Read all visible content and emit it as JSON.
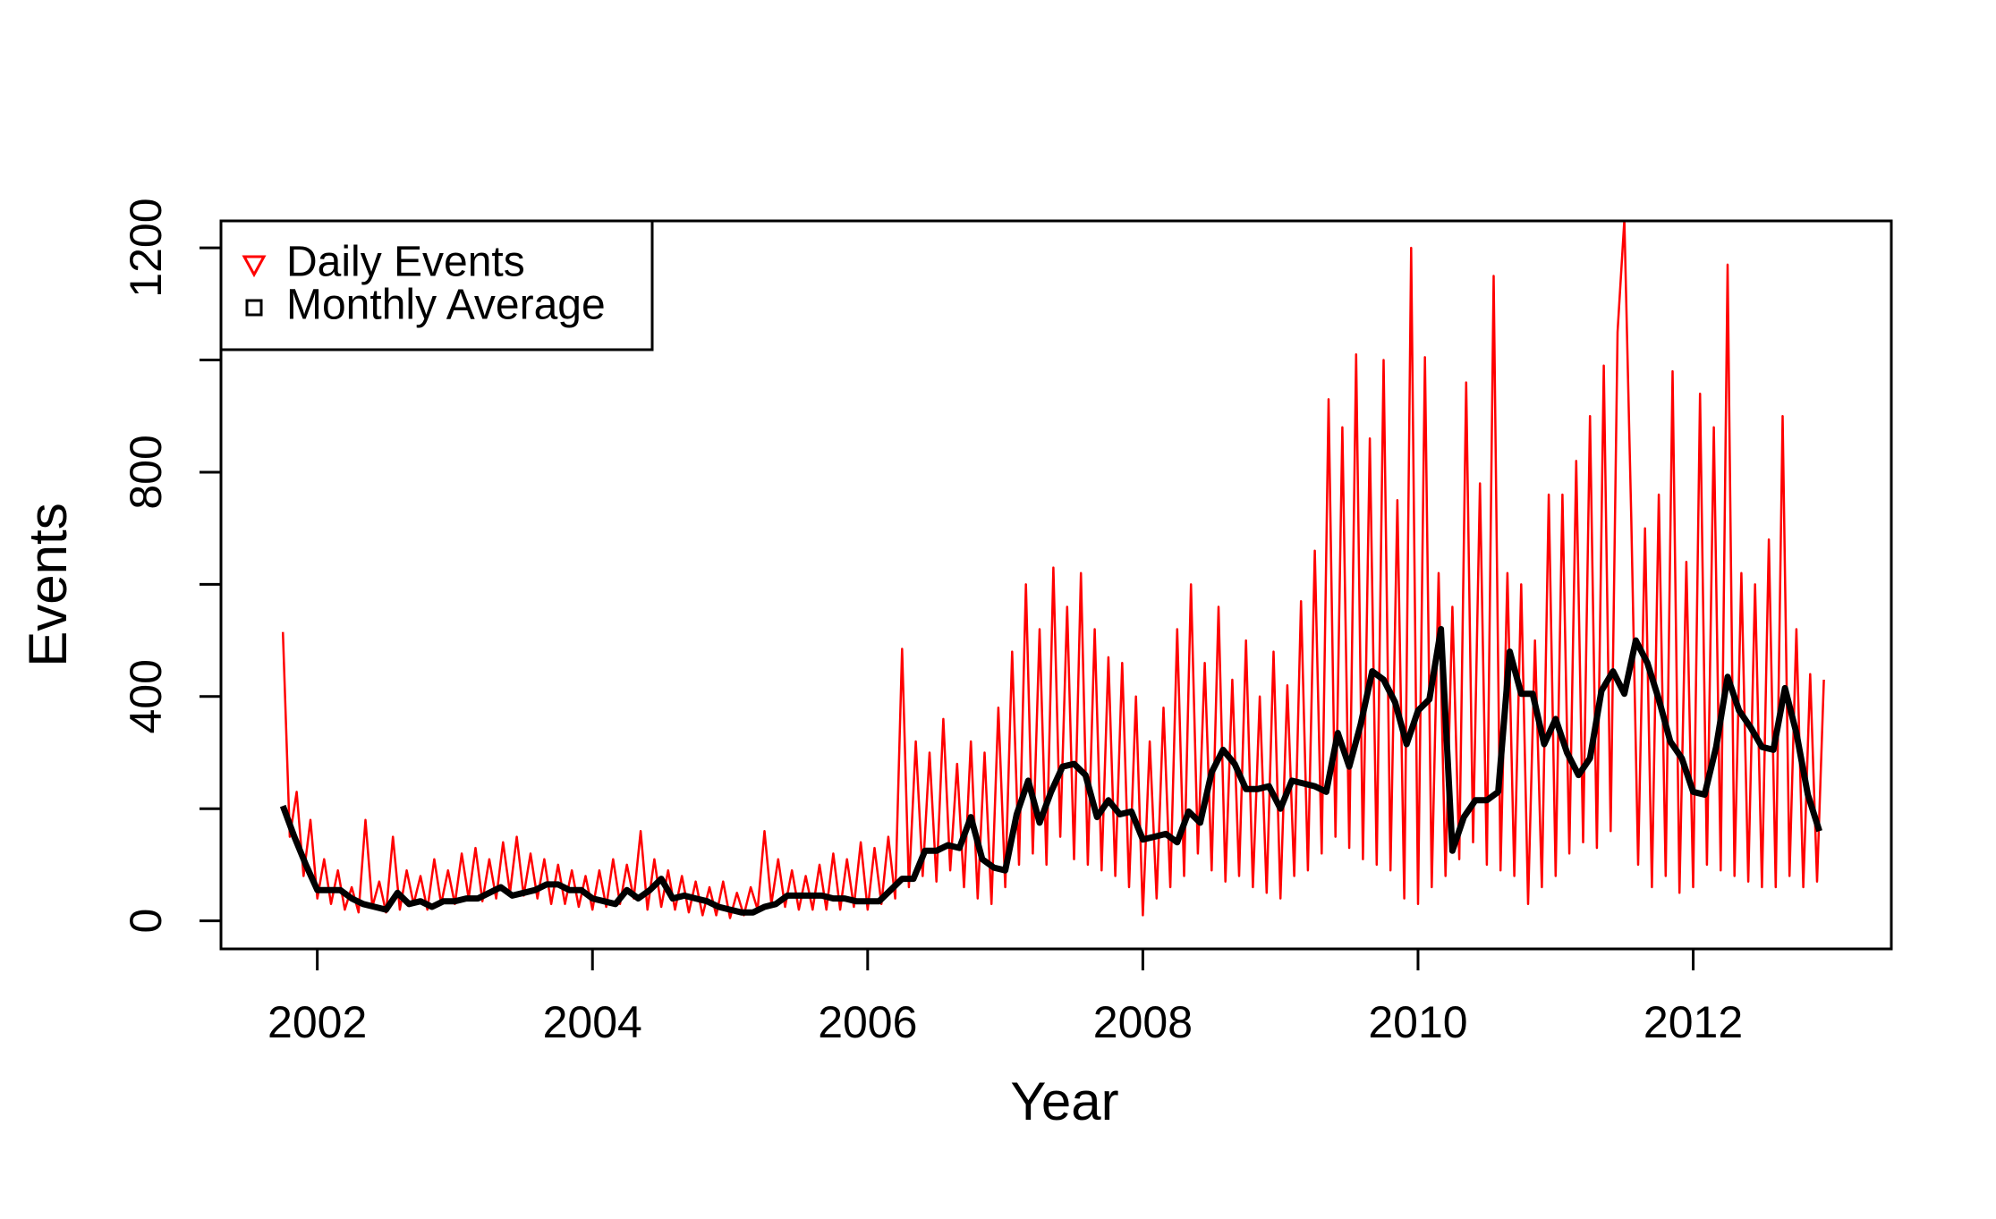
{
  "chart_data": {
    "type": "line",
    "x_label": "Year",
    "y_label": "Events",
    "xlim": [
      2001.3,
      2013.44
    ],
    "ylim": [
      -50,
      1248
    ],
    "xticks": [
      2002,
      2004,
      2006,
      2008,
      2010,
      2012
    ],
    "yticks": [
      0,
      400,
      800,
      1200
    ],
    "yminor_ticks": [
      200,
      600,
      1000
    ],
    "legend": "top-left",
    "series": [
      {
        "name": "Daily Events",
        "color": "#ff0000",
        "marker": "triangle-down",
        "x": [
          2001.75,
          2001.8,
          2001.85,
          2001.9,
          2001.95,
          2002.0,
          2002.05,
          2002.1,
          2002.15,
          2002.2,
          2002.25,
          2002.3,
          2002.35,
          2002.4,
          2002.45,
          2002.5,
          2002.55,
          2002.6,
          2002.65,
          2002.7,
          2002.75,
          2002.8,
          2002.85,
          2002.9,
          2002.95,
          2003.0,
          2003.05,
          2003.1,
          2003.15,
          2003.2,
          2003.25,
          2003.3,
          2003.35,
          2003.4,
          2003.45,
          2003.5,
          2003.55,
          2003.6,
          2003.65,
          2003.7,
          2003.75,
          2003.8,
          2003.85,
          2003.9,
          2003.95,
          2004.0,
          2004.05,
          2004.1,
          2004.15,
          2004.2,
          2004.25,
          2004.3,
          2004.35,
          2004.4,
          2004.45,
          2004.5,
          2004.55,
          2004.6,
          2004.65,
          2004.7,
          2004.75,
          2004.8,
          2004.85,
          2004.9,
          2004.95,
          2005.0,
          2005.05,
          2005.1,
          2005.15,
          2005.2,
          2005.25,
          2005.3,
          2005.35,
          2005.4,
          2005.45,
          2005.5,
          2005.55,
          2005.6,
          2005.65,
          2005.7,
          2005.75,
          2005.8,
          2005.85,
          2005.9,
          2005.95,
          2006.0,
          2006.05,
          2006.1,
          2006.15,
          2006.2,
          2006.25,
          2006.3,
          2006.35,
          2006.4,
          2006.45,
          2006.5,
          2006.55,
          2006.6,
          2006.65,
          2006.7,
          2006.75,
          2006.8,
          2006.85,
          2006.9,
          2006.95,
          2007.0,
          2007.05,
          2007.1,
          2007.15,
          2007.2,
          2007.25,
          2007.3,
          2007.35,
          2007.4,
          2007.45,
          2007.5,
          2007.55,
          2007.6,
          2007.65,
          2007.7,
          2007.75,
          2007.8,
          2007.85,
          2007.9,
          2007.95,
          2008.0,
          2008.05,
          2008.1,
          2008.15,
          2008.2,
          2008.25,
          2008.3,
          2008.35,
          2008.4,
          2008.45,
          2008.5,
          2008.55,
          2008.6,
          2008.65,
          2008.7,
          2008.75,
          2008.8,
          2008.85,
          2008.9,
          2008.95,
          2009.0,
          2009.05,
          2009.1,
          2009.15,
          2009.2,
          2009.25,
          2009.3,
          2009.35,
          2009.4,
          2009.45,
          2009.5,
          2009.55,
          2009.6,
          2009.65,
          2009.7,
          2009.75,
          2009.8,
          2009.85,
          2009.9,
          2009.95,
          2010.0,
          2010.05,
          2010.1,
          2010.15,
          2010.2,
          2010.25,
          2010.3,
          2010.35,
          2010.4,
          2010.45,
          2010.5,
          2010.55,
          2010.6,
          2010.65,
          2010.7,
          2010.75,
          2010.8,
          2010.85,
          2010.9,
          2010.95,
          2011.0,
          2011.05,
          2011.1,
          2011.15,
          2011.2,
          2011.25,
          2011.3,
          2011.35,
          2011.4,
          2011.45,
          2011.5,
          2011.55,
          2011.6,
          2011.65,
          2011.7,
          2011.75,
          2011.8,
          2011.85,
          2011.9,
          2011.95,
          2012.0,
          2012.05,
          2012.1,
          2012.15,
          2012.2,
          2012.25,
          2012.3,
          2012.35,
          2012.4,
          2012.45,
          2012.5,
          2012.55,
          2012.6,
          2012.65,
          2012.7,
          2012.75,
          2012.8,
          2012.85,
          2012.9,
          2012.95
        ],
        "values": [
          515,
          150,
          230,
          80,
          180,
          40,
          110,
          30,
          90,
          20,
          60,
          15,
          180,
          25,
          70,
          15,
          150,
          20,
          90,
          30,
          80,
          20,
          110,
          30,
          90,
          30,
          120,
          40,
          130,
          35,
          110,
          40,
          140,
          50,
          150,
          45,
          120,
          40,
          110,
          30,
          100,
          30,
          90,
          25,
          80,
          20,
          90,
          25,
          110,
          30,
          100,
          40,
          160,
          20,
          110,
          25,
          90,
          20,
          80,
          15,
          70,
          10,
          60,
          10,
          70,
          5,
          50,
          10,
          60,
          20,
          160,
          30,
          110,
          25,
          90,
          20,
          80,
          20,
          100,
          20,
          120,
          20,
          110,
          25,
          140,
          20,
          130,
          30,
          150,
          40,
          485,
          60,
          320,
          80,
          300,
          70,
          360,
          90,
          280,
          60,
          320,
          40,
          300,
          30,
          380,
          60,
          480,
          100,
          600,
          120,
          520,
          100,
          630,
          150,
          560,
          110,
          620,
          100,
          520,
          90,
          470,
          80,
          460,
          60,
          400,
          10,
          320,
          40,
          380,
          60,
          520,
          80,
          600,
          120,
          460,
          90,
          560,
          70,
          430,
          80,
          500,
          60,
          400,
          50,
          480,
          40,
          420,
          80,
          570,
          90,
          660,
          120,
          930,
          150,
          880,
          130,
          1010,
          110,
          860,
          100,
          1000,
          90,
          750,
          40,
          1200,
          30,
          1005,
          60,
          620,
          80,
          560,
          110,
          960,
          140,
          780,
          100,
          1150,
          90,
          620,
          80,
          600,
          30,
          500,
          60,
          760,
          80,
          760,
          120,
          820,
          140,
          900,
          130,
          990,
          160,
          1050,
          1250,
          720,
          100,
          700,
          60,
          760,
          80,
          980,
          50,
          640,
          60,
          940,
          100,
          880,
          90,
          1170,
          80,
          620,
          70,
          600,
          60,
          680,
          60,
          900,
          80,
          520,
          60,
          440,
          70,
          430
        ]
      },
      {
        "name": "Monthly Average",
        "color": "#000000",
        "marker": "square",
        "x": [
          2001.75,
          2001.833,
          2001.917,
          2002.0,
          2002.083,
          2002.167,
          2002.25,
          2002.333,
          2002.417,
          2002.5,
          2002.583,
          2002.667,
          2002.75,
          2002.833,
          2002.917,
          2003.0,
          2003.083,
          2003.167,
          2003.25,
          2003.333,
          2003.417,
          2003.5,
          2003.583,
          2003.667,
          2003.75,
          2003.833,
          2003.917,
          2004.0,
          2004.083,
          2004.167,
          2004.25,
          2004.333,
          2004.417,
          2004.5,
          2004.583,
          2004.667,
          2004.75,
          2004.833,
          2004.917,
          2005.0,
          2005.083,
          2005.167,
          2005.25,
          2005.333,
          2005.417,
          2005.5,
          2005.583,
          2005.667,
          2005.75,
          2005.833,
          2005.917,
          2006.0,
          2006.083,
          2006.167,
          2006.25,
          2006.333,
          2006.417,
          2006.5,
          2006.583,
          2006.667,
          2006.75,
          2006.833,
          2006.917,
          2007.0,
          2007.083,
          2007.167,
          2007.25,
          2007.333,
          2007.417,
          2007.5,
          2007.583,
          2007.667,
          2007.75,
          2007.833,
          2007.917,
          2008.0,
          2008.083,
          2008.167,
          2008.25,
          2008.333,
          2008.417,
          2008.5,
          2008.583,
          2008.667,
          2008.75,
          2008.833,
          2008.917,
          2009.0,
          2009.083,
          2009.167,
          2009.25,
          2009.333,
          2009.417,
          2009.5,
          2009.583,
          2009.667,
          2009.75,
          2009.833,
          2009.917,
          2010.0,
          2010.083,
          2010.167,
          2010.25,
          2010.333,
          2010.417,
          2010.5,
          2010.583,
          2010.667,
          2010.75,
          2010.833,
          2010.917,
          2011.0,
          2011.083,
          2011.167,
          2011.25,
          2011.333,
          2011.417,
          2011.5,
          2011.583,
          2011.667,
          2011.75,
          2011.833,
          2011.917,
          2012.0,
          2012.083,
          2012.167,
          2012.25,
          2012.333,
          2012.417,
          2012.5,
          2012.583,
          2012.667,
          2012.75,
          2012.833,
          2012.917
        ],
        "values": [
          205,
          150,
          100,
          55,
          55,
          55,
          40,
          30,
          25,
          20,
          50,
          30,
          35,
          25,
          35,
          35,
          40,
          40,
          50,
          60,
          45,
          50,
          55,
          65,
          65,
          55,
          55,
          40,
          35,
          30,
          55,
          40,
          55,
          75,
          40,
          45,
          40,
          35,
          25,
          20,
          15,
          15,
          25,
          30,
          45,
          45,
          45,
          45,
          40,
          40,
          35,
          35,
          35,
          55,
          75,
          75,
          125,
          125,
          135,
          130,
          185,
          110,
          95,
          90,
          190,
          250,
          175,
          230,
          275,
          280,
          260,
          185,
          215,
          190,
          195,
          145,
          150,
          155,
          140,
          195,
          175,
          265,
          305,
          280,
          235,
          235,
          240,
          200,
          250,
          245,
          240,
          230,
          335,
          275,
          350,
          445,
          430,
          390,
          315,
          375,
          395,
          520,
          125,
          185,
          215,
          215,
          230,
          480,
          405,
          405,
          315,
          360,
          300,
          260,
          290,
          410,
          445,
          405,
          500,
          460,
          395,
          320,
          290,
          230,
          225,
          310,
          435,
          375,
          345,
          310,
          305,
          415,
          335,
          225,
          160
        ]
      }
    ]
  }
}
